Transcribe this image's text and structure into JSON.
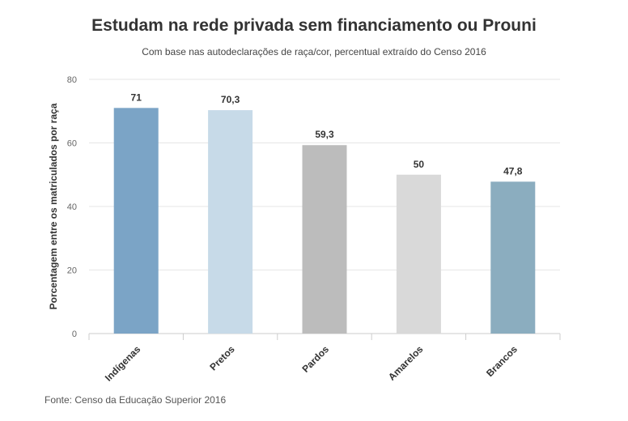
{
  "chart_data": {
    "type": "bar",
    "title": "Estudam na rede privada sem financiamento ou Prouni",
    "subtitle": "Com base nas autodeclarações de raça/cor, percentual extraído do Censo 2016",
    "xlabel": "",
    "ylabel": "Porcentagem entre os matriculados por raça",
    "ylim": [
      0,
      80
    ],
    "yticks": [
      0,
      20,
      40,
      60,
      80
    ],
    "grid": true,
    "categories": [
      "Indígenas",
      "Pretos",
      "Pardos",
      "Amarelos",
      "Brancos"
    ],
    "values": [
      71,
      70.3,
      59.3,
      50,
      47.8
    ],
    "value_labels": [
      "71",
      "70,3",
      "59,3",
      "50",
      "47,8"
    ],
    "colors": [
      "#7ba4c6",
      "#c7dae8",
      "#bcbcbc",
      "#d9d9d9",
      "#8badbf"
    ],
    "source": "Fonte: Censo da Educação Superior 2016"
  }
}
